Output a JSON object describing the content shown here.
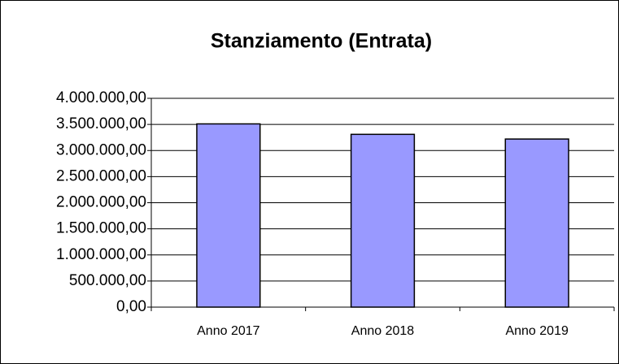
{
  "chart_data": {
    "type": "bar",
    "title": "Stanziamento (Entrata)",
    "categories": [
      "Anno 2017",
      "Anno 2018",
      "Anno 2019"
    ],
    "values": [
      3510000,
      3310000,
      3220000
    ],
    "color": "#9999ff",
    "ylim": [
      0,
      4000000
    ],
    "yticks": [
      {
        "value": 0,
        "label": "0,00"
      },
      {
        "value": 500000,
        "label": "500.000,00"
      },
      {
        "value": 1000000,
        "label": "1.000.000,00"
      },
      {
        "value": 1500000,
        "label": "1.500.000,00"
      },
      {
        "value": 2000000,
        "label": "2.000.000,00"
      },
      {
        "value": 2500000,
        "label": "2.500.000,00"
      },
      {
        "value": 3000000,
        "label": "3.000.000,00"
      },
      {
        "value": 3500000,
        "label": "3.500.000,00"
      },
      {
        "value": 4000000,
        "label": "4.000.000,00"
      }
    ],
    "grid": true
  }
}
